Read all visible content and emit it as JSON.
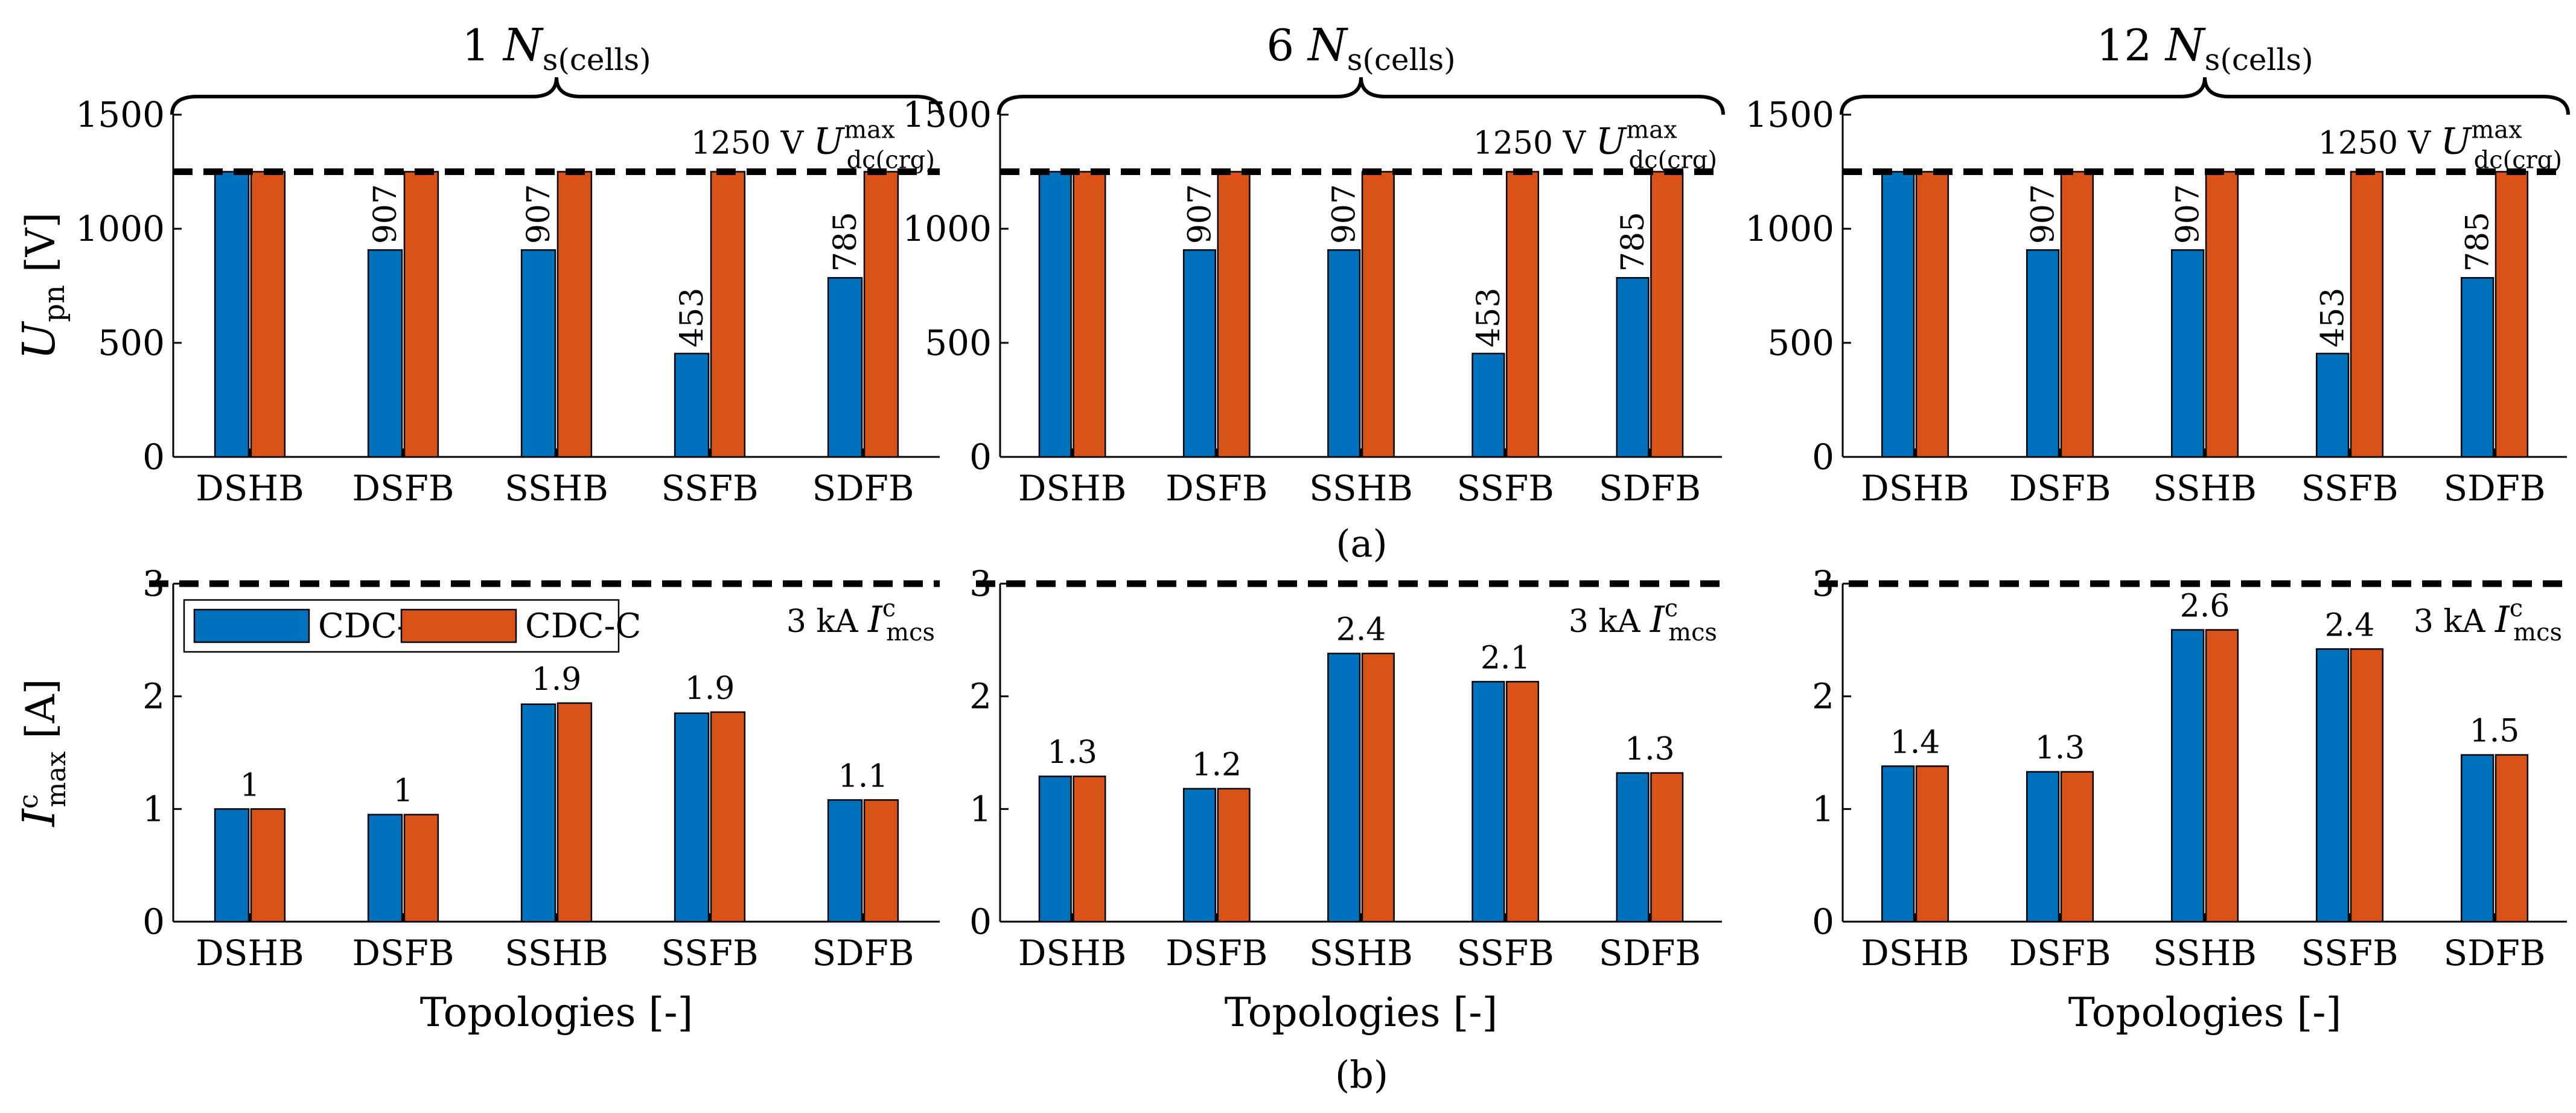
{
  "figure": {
    "panel_labels": [
      "(a)",
      "(b)"
    ],
    "group_headers": [
      "1 N",
      "6 N",
      "12 N"
    ],
    "group_header_subscript": "s(cells)",
    "ylabel_top": {
      "main": "U",
      "sub": "pn",
      "unit": "[V]"
    },
    "ylabel_bottom": {
      "main": "I",
      "sup": "c",
      "sub": "max",
      "unit": "[A]"
    },
    "xlabel": "Topologies [-]",
    "colors": {
      "CDC-T": "#0072BD",
      "CDC-C": "#D95319"
    },
    "legend": [
      "CDC-T",
      "CDC-C"
    ]
  },
  "chart_data": [
    {
      "type": "bar",
      "row": 0,
      "group": 0,
      "categories": [
        "DSHB",
        "DSFB",
        "SSHB",
        "SSFB",
        "SDFB"
      ],
      "series": [
        {
          "name": "CDC-T",
          "values": [
            1250,
            907,
            907,
            453,
            785
          ]
        },
        {
          "name": "CDC-C",
          "values": [
            1250,
            1250,
            1250,
            1250,
            1250
          ]
        }
      ],
      "labels": [
        "",
        "907",
        "907",
        "453",
        "785"
      ],
      "ylim": [
        0,
        1500
      ],
      "yticks": [
        0,
        500,
        1000,
        1500
      ],
      "reference": {
        "value": 1250,
        "text": "1250 V",
        "symbol": "U",
        "sup": "max",
        "sub": "dc(crg)"
      }
    },
    {
      "type": "bar",
      "row": 0,
      "group": 1,
      "categories": [
        "DSHB",
        "DSFB",
        "SSHB",
        "SSFB",
        "SDFB"
      ],
      "series": [
        {
          "name": "CDC-T",
          "values": [
            1250,
            907,
            907,
            453,
            785
          ]
        },
        {
          "name": "CDC-C",
          "values": [
            1250,
            1250,
            1250,
            1250,
            1250
          ]
        }
      ],
      "labels": [
        "",
        "907",
        "907",
        "453",
        "785"
      ],
      "ylim": [
        0,
        1500
      ],
      "yticks": [
        0,
        500,
        1000,
        1500
      ],
      "reference": {
        "value": 1250,
        "text": "1250 V",
        "symbol": "U",
        "sup": "max",
        "sub": "dc(crg)"
      }
    },
    {
      "type": "bar",
      "row": 0,
      "group": 2,
      "categories": [
        "DSHB",
        "DSFB",
        "SSHB",
        "SSFB",
        "SDFB"
      ],
      "series": [
        {
          "name": "CDC-T",
          "values": [
            1250,
            907,
            907,
            453,
            785
          ]
        },
        {
          "name": "CDC-C",
          "values": [
            1250,
            1250,
            1250,
            1250,
            1250
          ]
        }
      ],
      "labels": [
        "",
        "907",
        "907",
        "453",
        "785"
      ],
      "ylim": [
        0,
        1500
      ],
      "yticks": [
        0,
        500,
        1000,
        1500
      ],
      "reference": {
        "value": 1250,
        "text": "1250 V",
        "symbol": "U",
        "sup": "max",
        "sub": "dc(crg)"
      }
    },
    {
      "type": "bar",
      "row": 1,
      "group": 0,
      "categories": [
        "DSHB",
        "DSFB",
        "SSHB",
        "SSFB",
        "SDFB"
      ],
      "series": [
        {
          "name": "CDC-T",
          "values": [
            1.0,
            0.95,
            1.93,
            1.85,
            1.08
          ]
        },
        {
          "name": "CDC-C",
          "values": [
            1.0,
            0.95,
            1.94,
            1.86,
            1.08
          ]
        }
      ],
      "labels": [
        "1",
        "1",
        "1.9",
        "1.9",
        "1.1"
      ],
      "ylim": [
        0,
        3
      ],
      "yticks": [
        0,
        1,
        2,
        3
      ],
      "reference": {
        "value": 3,
        "text": "3 kA",
        "symbol": "I",
        "sup": "c",
        "sub": "mcs"
      },
      "legend": true
    },
    {
      "type": "bar",
      "row": 1,
      "group": 1,
      "categories": [
        "DSHB",
        "DSFB",
        "SSHB",
        "SSFB",
        "SDFB"
      ],
      "series": [
        {
          "name": "CDC-T",
          "values": [
            1.29,
            1.18,
            2.38,
            2.13,
            1.32
          ]
        },
        {
          "name": "CDC-C",
          "values": [
            1.29,
            1.18,
            2.38,
            2.13,
            1.32
          ]
        }
      ],
      "labels": [
        "1.3",
        "1.2",
        "2.4",
        "2.1",
        "1.3"
      ],
      "ylim": [
        0,
        3
      ],
      "yticks": [
        0,
        1,
        2,
        3
      ],
      "reference": {
        "value": 3,
        "text": "3 kA",
        "symbol": "I",
        "sup": "c",
        "sub": "mcs"
      }
    },
    {
      "type": "bar",
      "row": 1,
      "group": 2,
      "categories": [
        "DSHB",
        "DSFB",
        "SSHB",
        "SSFB",
        "SDFB"
      ],
      "series": [
        {
          "name": "CDC-T",
          "values": [
            1.38,
            1.33,
            2.59,
            2.42,
            1.48
          ]
        },
        {
          "name": "CDC-C",
          "values": [
            1.38,
            1.33,
            2.59,
            2.42,
            1.48
          ]
        }
      ],
      "labels": [
        "1.4",
        "1.3",
        "2.6",
        "2.4",
        "1.5"
      ],
      "ylim": [
        0,
        3
      ],
      "yticks": [
        0,
        1,
        2,
        3
      ],
      "reference": {
        "value": 3,
        "text": "3 kA",
        "symbol": "I",
        "sup": "c",
        "sub": "mcs"
      }
    }
  ]
}
